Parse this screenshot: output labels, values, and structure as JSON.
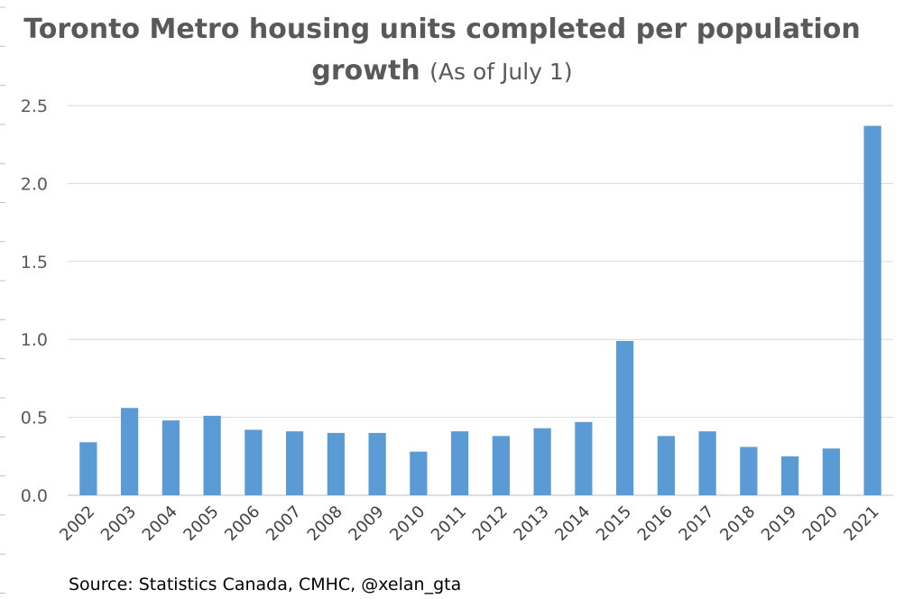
{
  "chart_data": {
    "type": "bar",
    "title": "Toronto Metro housing units completed per population growth",
    "subtitle": "(As of July 1)",
    "xlabel": "",
    "ylabel": "",
    "categories": [
      "2002",
      "2003",
      "2004",
      "2005",
      "2006",
      "2007",
      "2008",
      "2009",
      "2010",
      "2011",
      "2012",
      "2013",
      "2014",
      "2015",
      "2016",
      "2017",
      "2018",
      "2019",
      "2020",
      "2021"
    ],
    "values": [
      0.34,
      0.56,
      0.48,
      0.51,
      0.42,
      0.41,
      0.4,
      0.4,
      0.28,
      0.41,
      0.38,
      0.43,
      0.47,
      0.99,
      0.38,
      0.41,
      0.31,
      0.25,
      0.3,
      2.37
    ],
    "ylim": [
      0,
      2.5
    ],
    "yticks": [
      "0.0",
      "0.5",
      "1.0",
      "1.5",
      "2.0",
      "2.5"
    ],
    "grid": true,
    "bar_color": "#5B9BD5"
  },
  "source": "Source: Statistics Canada, CMHC, @xelan_gta"
}
